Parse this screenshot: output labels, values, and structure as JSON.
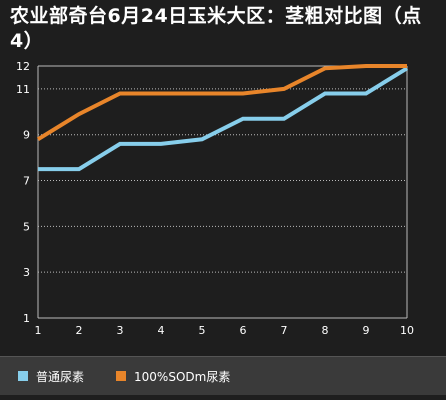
{
  "chart_data": {
    "type": "line",
    "title": "农业部奇台6月24日玉米大区：茎粗对比图（点4）",
    "xlabel": "",
    "ylabel": "",
    "x": [
      1,
      2,
      3,
      4,
      5,
      6,
      7,
      8,
      9,
      10
    ],
    "x_ticks": [
      "1",
      "2",
      "3",
      "4",
      "5",
      "6",
      "7",
      "8",
      "9",
      "10"
    ],
    "y_ticks": [
      "1",
      "3",
      "5",
      "7",
      "9",
      "11",
      "12"
    ],
    "ylim": [
      1,
      12
    ],
    "grid": "horizontal dashed",
    "legend_position": "bottom",
    "series": [
      {
        "name": "普通尿素",
        "color": "#87ceeb",
        "values": [
          7.5,
          7.5,
          8.6,
          8.6,
          8.8,
          9.7,
          9.7,
          10.8,
          10.8,
          11.9
        ]
      },
      {
        "name": "100%SODm尿素",
        "color": "#e8852a",
        "values": [
          8.8,
          9.9,
          10.8,
          10.8,
          10.8,
          10.8,
          11.0,
          11.9,
          12.0,
          12.0
        ]
      }
    ]
  }
}
